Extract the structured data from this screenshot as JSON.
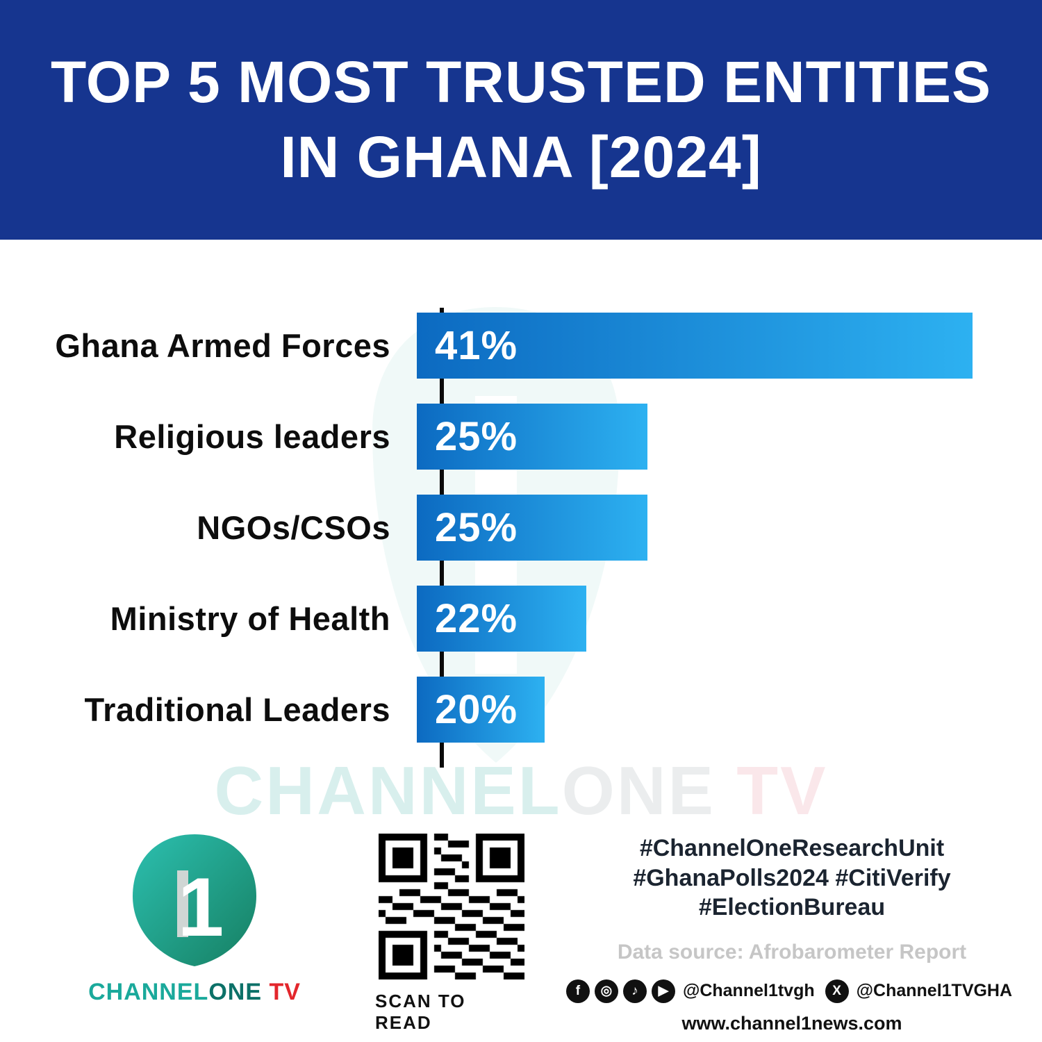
{
  "title": {
    "line1": "TOP 5 MOST TRUSTED ENTITIES",
    "line2": "IN GHANA [2024]"
  },
  "chart_data": {
    "type": "bar",
    "orientation": "horizontal",
    "title": "Top 5 Most Trusted Entities in Ghana [2024]",
    "categories": [
      "Ghana Armed Forces",
      "Religious leaders",
      "NGOs/CSOs",
      "Ministry of Health",
      "Traditional Leaders"
    ],
    "values": [
      41,
      25,
      25,
      22,
      20
    ],
    "value_labels": [
      "41%",
      "25%",
      "25%",
      "22%",
      "20%"
    ],
    "bar_widths_pct": [
      100,
      41.5,
      41.5,
      30.5,
      23
    ],
    "bar_color_start": "#0c6ac1",
    "bar_color_end": "#2db1f1",
    "axis_color": "#0a0a0a",
    "legend": "none",
    "grid": "off"
  },
  "watermark": {
    "channel": "CHANNEL",
    "one": "ONE",
    "tv": " TV"
  },
  "logo": {
    "numeral": "1",
    "channel": "CHANNEL",
    "one": "ONE",
    "tv": " TV"
  },
  "qr": {
    "caption": "SCAN TO READ"
  },
  "footer": {
    "hashtags_line1": "#ChannelOneResearchUnit",
    "hashtags_line2": "#GhanaPolls2024 #CitiVerify",
    "hashtags_line3": "#ElectionBureau",
    "data_source": "Data source: Afrobarometer Report",
    "social_icons": [
      {
        "name": "facebook",
        "glyph": "f"
      },
      {
        "name": "instagram",
        "glyph": "◎"
      },
      {
        "name": "tiktok",
        "glyph": "♪"
      },
      {
        "name": "youtube",
        "glyph": "▶"
      }
    ],
    "x_icon_glyph": "X",
    "social_handle_1": "@Channel1tvgh",
    "social_handle_2": "@Channel1TVGHA",
    "website": "www.channel1news.com"
  },
  "colors": {
    "banner_blue": "#16358f",
    "bar_gradient_start": "#0c6ac1",
    "bar_gradient_end": "#2db1f1",
    "logo_teal": "#1aa99b",
    "logo_red": "#e3262c"
  }
}
